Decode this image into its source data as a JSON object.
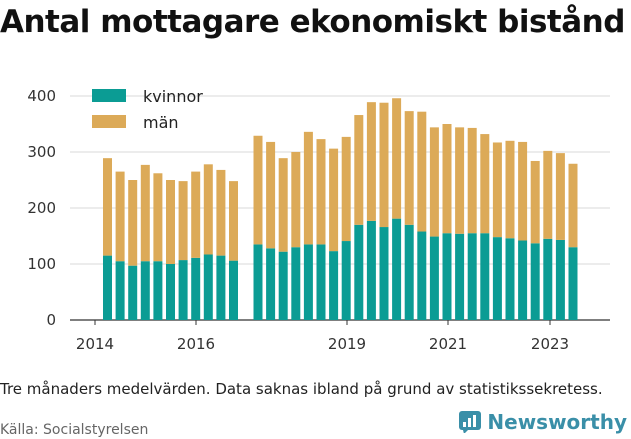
{
  "title": "Antal mottagare ekonomiskt bistånd",
  "caption": "Tre månaders medelvärden. Data saknas ibland på grund av statistikssekretess.",
  "source": "Källa: Socialstyrelsen",
  "brand": {
    "name": "Newsworthy",
    "icon": "newsworthy-logo-icon",
    "color": "#3a8fa8"
  },
  "colors": {
    "kvinnor": "#0b9c94",
    "man": "#dcaa58",
    "grid": "#d9d9d9"
  },
  "chart_data": {
    "type": "bar",
    "stacked": true,
    "x_ticks": [
      "2014",
      "2016",
      "2019",
      "2021",
      "2023"
    ],
    "y_ticks": [
      0,
      100,
      200,
      300,
      400
    ],
    "ylim": [
      0,
      420
    ],
    "legend": [
      "kvinnor",
      "män"
    ],
    "legend_position": "top-left",
    "grid": "horizontal",
    "series": [
      {
        "name": "kvinnor",
        "segments": [
          [
            115,
            105,
            97,
            105,
            105,
            100,
            107,
            111,
            117,
            115,
            106
          ],
          [
            135,
            128,
            122,
            130,
            135,
            135,
            123,
            141,
            170,
            177,
            166,
            181,
            170,
            158,
            149,
            155,
            154,
            155,
            155,
            148,
            146,
            142,
            137,
            145,
            143,
            130
          ]
        ]
      },
      {
        "name": "män",
        "segments": [
          [
            174,
            160,
            153,
            172,
            157,
            150,
            141,
            154,
            161,
            153,
            142
          ],
          [
            194,
            190,
            167,
            170,
            201,
            188,
            183,
            186,
            196,
            212,
            222,
            215,
            203,
            214,
            195,
            195,
            190,
            188,
            177,
            169,
            174,
            176,
            147,
            157,
            155,
            149
          ]
        ]
      }
    ]
  }
}
